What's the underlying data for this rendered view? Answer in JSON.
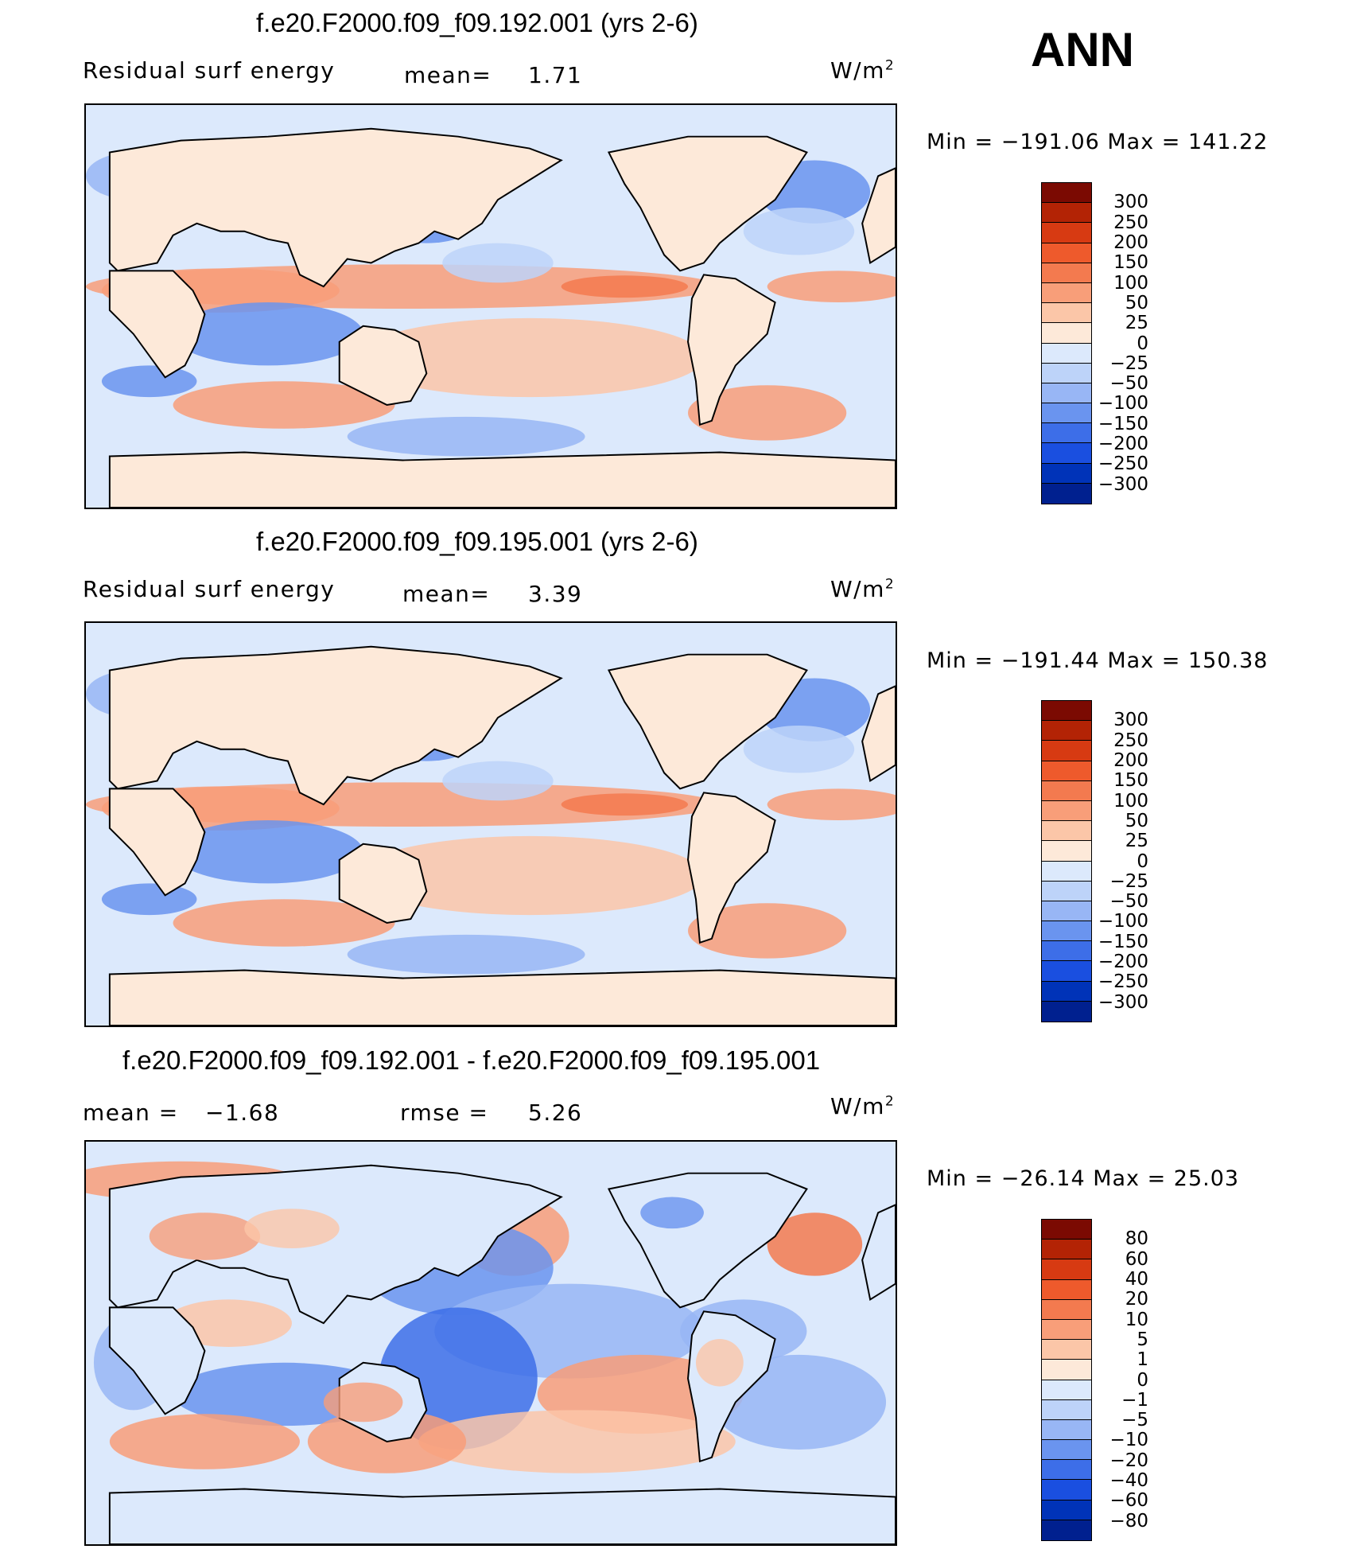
{
  "season": "ANN",
  "colors": {
    "land": "#fde9d9",
    "coast": "#000000",
    "panel_scale": [
      "#000c7d",
      "#00208f",
      "#0033b8",
      "#1a4fe0",
      "#3d6ee8",
      "#6a94ef",
      "#98b6f5",
      "#bdd3f9",
      "#dce9fc",
      "#fde9d9",
      "#fbc6a8",
      "#f89e79",
      "#f37a4f",
      "#ee5a2c",
      "#d73a12",
      "#b32305",
      "#7b0a02"
    ],
    "diff_scale": [
      "#000c7d",
      "#00208f",
      "#0033b8",
      "#1a4fe0",
      "#3d6ee8",
      "#6a94ef",
      "#98b6f5",
      "#bdd3f9",
      "#dce9fc",
      "#fde9d9",
      "#fbc6a8",
      "#f89e79",
      "#f37a4f",
      "#ee5a2c",
      "#d73a12",
      "#b32305",
      "#7b0a02"
    ]
  },
  "panels": [
    {
      "title": "f.e20.F2000.f09_f09.192.001 (yrs 2-6)",
      "variable": "Residual surf energy",
      "mean_label": "mean=",
      "mean_value": "1.71",
      "units": "W/m",
      "units_exp": "2",
      "min_max": "Min = −191.06 Max = 141.22",
      "colorbar_labels": [
        "300",
        "250",
        "200",
        "150",
        "100",
        "50",
        "25",
        "0",
        "−25",
        "−50",
        "−100",
        "−150",
        "−200",
        "−250",
        "−300"
      ]
    },
    {
      "title": "f.e20.F2000.f09_f09.195.001 (yrs 2-6)",
      "variable": "Residual surf energy",
      "mean_label": "mean=",
      "mean_value": "3.39",
      "units": "W/m",
      "units_exp": "2",
      "min_max": "Min = −191.44 Max = 150.38",
      "colorbar_labels": [
        "300",
        "250",
        "200",
        "150",
        "100",
        "50",
        "25",
        "0",
        "−25",
        "−50",
        "−100",
        "−150",
        "−200",
        "−250",
        "−300"
      ]
    },
    {
      "title": "f.e20.F2000.f09_f09.192.001 - f.e20.F2000.f09_f09.195.001",
      "mean_label": "mean =",
      "mean_value": "−1.68",
      "rmse_label": "rmse =",
      "rmse_value": "5.26",
      "units": "W/m",
      "units_exp": "2",
      "min_max": "Min = −26.14 Max =  25.03",
      "colorbar_labels": [
        "80",
        "60",
        "40",
        "20",
        "10",
        "5",
        "1",
        "0",
        "−1",
        "−5",
        "−10",
        "−20",
        "−40",
        "−60",
        "−80"
      ]
    }
  ]
}
